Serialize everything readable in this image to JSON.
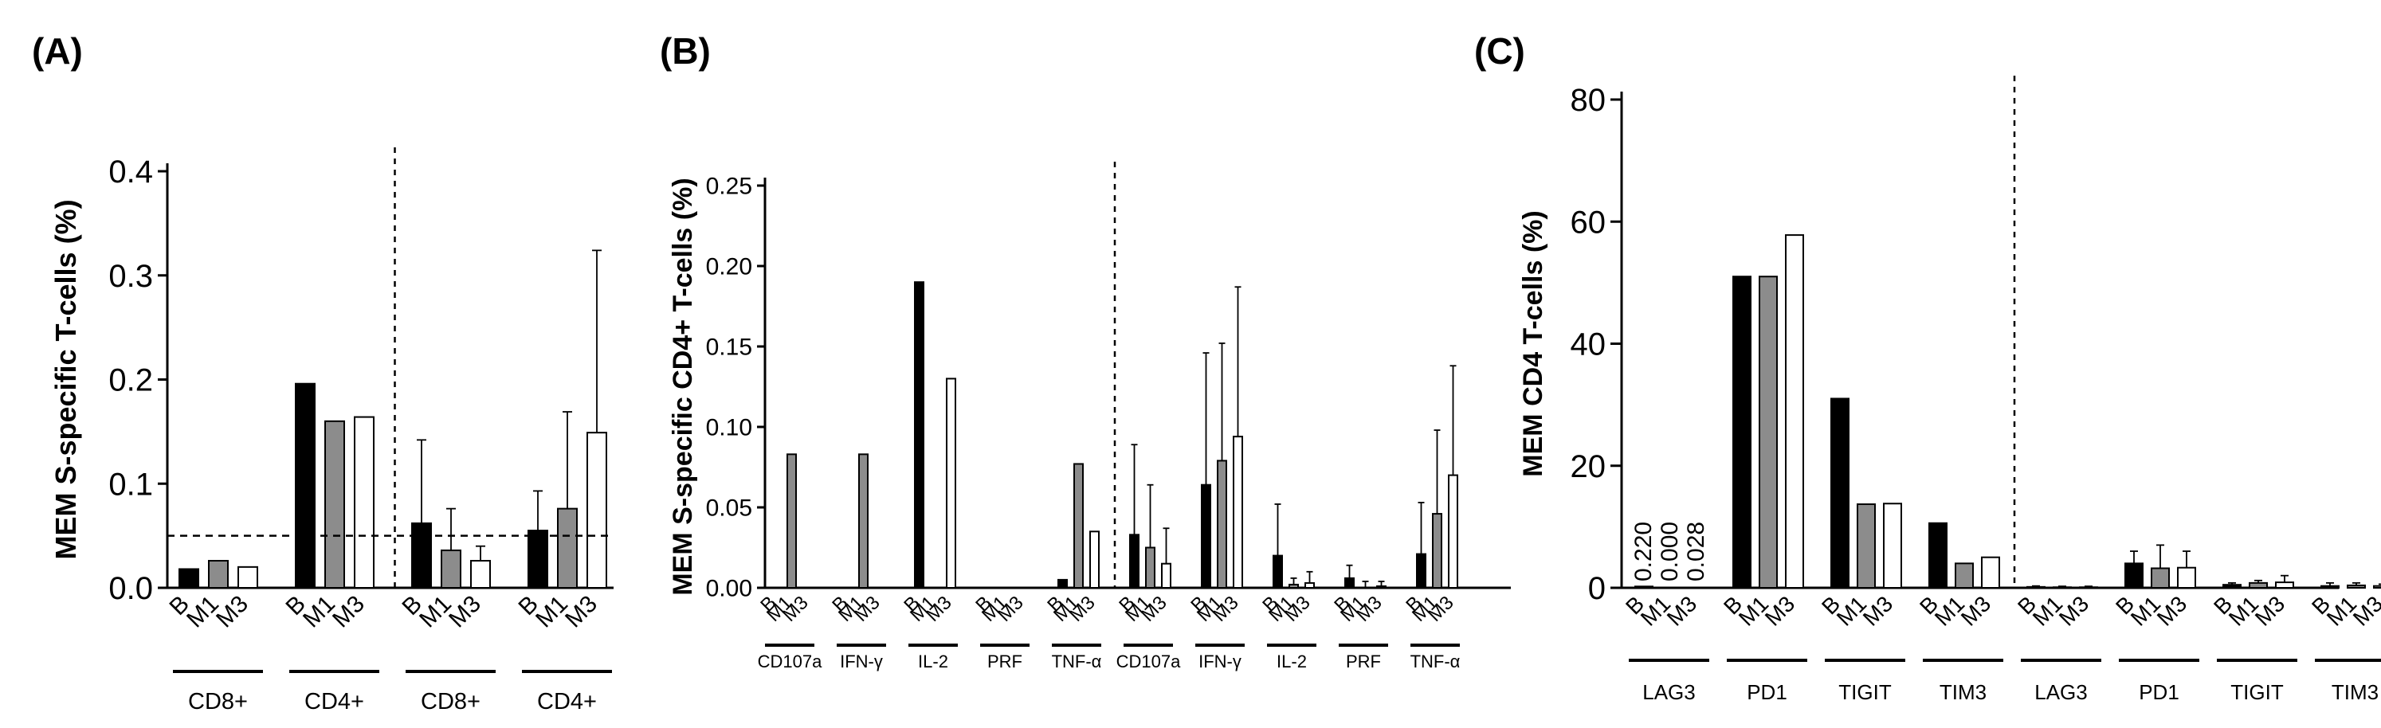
{
  "colors": {
    "B": "#000000",
    "M1": "#8c8c8c",
    "M3": "#ffffff",
    "edge": "#000000"
  },
  "chart_data": [
    {
      "panel": "(A)",
      "type": "bar",
      "ylabel": "MEM S-specific T-cells (%)",
      "ylim": [
        0,
        0.4
      ],
      "yticks": [
        "0.0",
        "0.1",
        "0.2",
        "0.3",
        "0.4"
      ],
      "reference_line": 0.05,
      "bar_labels": [
        "B",
        "M1",
        "M3"
      ],
      "groups": [
        {
          "label": "CD8+",
          "values": [
            0.018,
            0.026,
            0.02
          ],
          "errors": [
            null,
            null,
            null
          ]
        },
        {
          "label": "CD4+",
          "values": [
            0.196,
            0.16,
            0.164
          ],
          "errors": [
            null,
            null,
            null
          ]
        },
        {
          "label": "CD8+",
          "values": [
            0.062,
            0.036,
            0.026
          ],
          "errors": [
            0.142,
            0.076,
            0.04
          ]
        },
        {
          "label": "CD4+",
          "values": [
            0.055,
            0.076,
            0.149
          ],
          "errors": [
            0.093,
            0.169,
            0.324
          ]
        }
      ],
      "separator_after_group": 2
    },
    {
      "panel": "(B)",
      "type": "bar",
      "ylabel": "MEM S-specific CD4+ T-cells (%)",
      "ylim": [
        0,
        0.25
      ],
      "yticks": [
        "0.00",
        "0.05",
        "0.10",
        "0.15",
        "0.20",
        "0.25"
      ],
      "bar_labels": [
        "B",
        "M1",
        "M3"
      ],
      "groups": [
        {
          "label": "CD107a",
          "values": [
            0,
            0.083,
            0
          ],
          "errors": [
            null,
            null,
            null
          ]
        },
        {
          "label": "IFN-γ",
          "values": [
            0,
            0.083,
            0
          ],
          "errors": [
            null,
            null,
            null
          ]
        },
        {
          "label": "IL-2",
          "values": [
            0.19,
            0,
            0.13
          ],
          "errors": [
            null,
            null,
            null
          ]
        },
        {
          "label": "PRF",
          "values": [
            0,
            0,
            0
          ],
          "errors": [
            null,
            null,
            null
          ]
        },
        {
          "label": "TNF-α",
          "values": [
            0.005,
            0.077,
            0.035
          ],
          "errors": [
            null,
            null,
            null
          ]
        },
        {
          "label": "CD107a",
          "values": [
            0.033,
            0.025,
            0.015
          ],
          "errors": [
            0.089,
            0.064,
            0.037
          ]
        },
        {
          "label": "IFN-γ",
          "values": [
            0.064,
            0.079,
            0.094
          ],
          "errors": [
            0.146,
            0.152,
            0.187
          ]
        },
        {
          "label": "IL-2",
          "values": [
            0.02,
            0.002,
            0.003
          ],
          "errors": [
            0.052,
            0.006,
            0.01
          ]
        },
        {
          "label": "PRF",
          "values": [
            0.006,
            0,
            0.001
          ],
          "errors": [
            0.014,
            0.004,
            0.004
          ]
        },
        {
          "label": "TNF-α",
          "values": [
            0.021,
            0.046,
            0.07
          ],
          "errors": [
            0.053,
            0.098,
            0.138
          ]
        }
      ],
      "separator_after_group": 5
    },
    {
      "panel": "(C)",
      "type": "bar",
      "ylabel": "MEM CD4 T-cells (%)",
      "ylim": [
        0,
        80
      ],
      "yticks": [
        "0",
        "20",
        "40",
        "60",
        "80"
      ],
      "bar_labels": [
        "B",
        "M1",
        "M3"
      ],
      "annotations": [
        "0.220",
        "0.000",
        "0.028"
      ],
      "groups": [
        {
          "label": "LAG3",
          "values": [
            0.22,
            0,
            0.028
          ],
          "errors": [
            null,
            null,
            null
          ]
        },
        {
          "label": "PD1",
          "values": [
            51,
            51,
            57.8
          ],
          "errors": [
            null,
            null,
            null
          ]
        },
        {
          "label": "TIGIT",
          "values": [
            31,
            13.7,
            13.8
          ],
          "errors": [
            null,
            null,
            null
          ]
        },
        {
          "label": "TIM3",
          "values": [
            10.6,
            4.0,
            5.0
          ],
          "errors": [
            null,
            null,
            null
          ]
        },
        {
          "label": "LAG3",
          "values": [
            0.15,
            0.1,
            0.1
          ],
          "errors": [
            0.3,
            0.25,
            0.25
          ]
        },
        {
          "label": "PD1",
          "values": [
            4.0,
            3.2,
            3.3
          ],
          "errors": [
            6.0,
            7.0,
            6.0
          ]
        },
        {
          "label": "TIGIT",
          "values": [
            0.5,
            0.8,
            0.9
          ],
          "errors": [
            0.8,
            1.2,
            2.0
          ]
        },
        {
          "label": "TIM3",
          "values": [
            0.3,
            0.4,
            0.3
          ],
          "errors": [
            0.8,
            0.8,
            0.6
          ]
        }
      ],
      "separator_after_group": 4
    }
  ]
}
